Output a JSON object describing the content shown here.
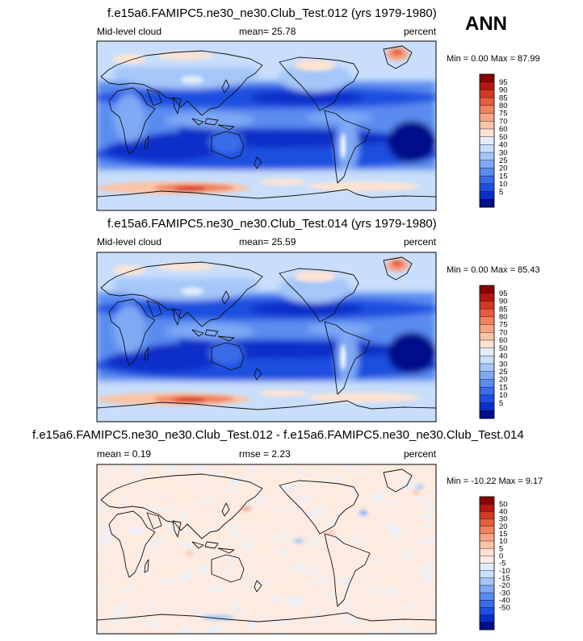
{
  "season": "ANN",
  "colors": {
    "abs_levels": [
      "#000f8a",
      "#0a2ec8",
      "#1f4fe0",
      "#3a6ce8",
      "#5a8cf0",
      "#7ea9f4",
      "#a5c6f8",
      "#c8defb",
      "#e2ecfb",
      "#fde3d3",
      "#fbc4a7",
      "#f8a483",
      "#f1835f",
      "#e65e3f",
      "#d13b24",
      "#b41712",
      "#8c0000"
    ],
    "diff_levels": [
      "#000f8a",
      "#0a2ec8",
      "#1f4fe0",
      "#3a6ce8",
      "#5a8cf0",
      "#7ea9f4",
      "#a5c6f8",
      "#c8defb",
      "#e2ecfb",
      "#fdebe0",
      "#fde3d3",
      "#fbc4a7",
      "#f8a483",
      "#f1835f",
      "#e65e3f",
      "#d13b24",
      "#b41712",
      "#8c0000"
    ]
  },
  "panels": [
    {
      "title": "f.e15a6.FAMIPC5.ne30_ne30.Club_Test.012 (yrs 1979-1980)",
      "left_label": "Mid-level cloud",
      "mid_label": "mean=  25.78",
      "right_label": "percent",
      "minmax": "Min =   0.00 Max =  87.99",
      "colorbar_labels": [
        "95",
        "90",
        "85",
        "80",
        "75",
        "70",
        "60",
        "50",
        "40",
        "30",
        "25",
        "20",
        "15",
        "10",
        "5"
      ]
    },
    {
      "title": "f.e15a6.FAMIPC5.ne30_ne30.Club_Test.014 (yrs 1979-1980)",
      "left_label": "Mid-level cloud",
      "mid_label": "mean=  25.59",
      "right_label": "percent",
      "minmax": "Min =   0.00 Max =  85.43",
      "colorbar_labels": [
        "95",
        "90",
        "85",
        "80",
        "75",
        "70",
        "60",
        "50",
        "40",
        "30",
        "25",
        "20",
        "15",
        "10",
        "5"
      ]
    },
    {
      "title": "f.e15a6.FAMIPC5.ne30_ne30.Club_Test.012 - f.e15a6.FAMIPC5.ne30_ne30.Club_Test.014",
      "left_label": "mean =   0.19",
      "mid_label": "rmse =   2.23",
      "right_label": "percent",
      "minmax": "Min = -10.22 Max =   9.17",
      "colorbar_labels": [
        "50",
        "40",
        "30",
        "20",
        "15",
        "10",
        "5",
        "0",
        "-5",
        "-10",
        "-15",
        "-20",
        "-30",
        "-40",
        "-50"
      ]
    }
  ],
  "chart_data": [
    {
      "type": "heatmap",
      "title": "f.e15a6.FAMIPC5.ne30_ne30.Club_Test.012 (yrs 1979-1980)",
      "variable": "Mid-level cloud",
      "units": "percent",
      "mean": 25.78,
      "min": 0.0,
      "max": 87.99,
      "contour_levels": [
        5,
        10,
        15,
        20,
        25,
        30,
        40,
        50,
        60,
        70,
        75,
        80,
        85,
        90,
        95
      ],
      "features": "low values (5-15) over subtropical oceans; high values (60-95) over Southern Ocean and Greenland"
    },
    {
      "type": "heatmap",
      "title": "f.e15a6.FAMIPC5.ne30_ne30.Club_Test.014 (yrs 1979-1980)",
      "variable": "Mid-level cloud",
      "units": "percent",
      "mean": 25.59,
      "min": 0.0,
      "max": 85.43,
      "contour_levels": [
        5,
        10,
        15,
        20,
        25,
        30,
        40,
        50,
        60,
        70,
        75,
        80,
        85,
        90,
        95
      ]
    },
    {
      "type": "heatmap",
      "title": "f.e15a6.FAMIPC5.ne30_ne30.Club_Test.012 - f.e15a6.FAMIPC5.ne30_ne30.Club_Test.014",
      "units": "percent",
      "mean": 0.19,
      "rmse": 2.23,
      "min": -10.22,
      "max": 9.17,
      "contour_levels": [
        -50,
        -40,
        -30,
        -20,
        -15,
        -10,
        -5,
        0,
        5,
        10,
        15,
        20,
        30,
        40,
        50
      ]
    }
  ]
}
